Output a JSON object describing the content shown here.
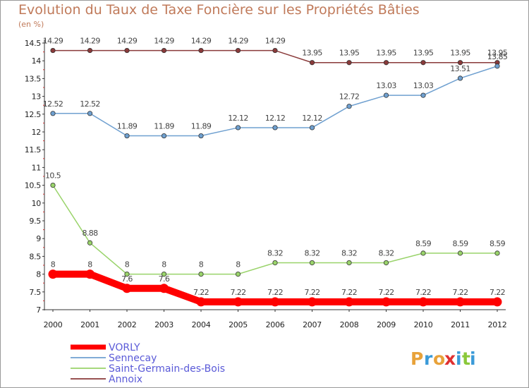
{
  "chart_data": {
    "type": "line",
    "title": "Evolution du Taux de Taxe Foncière sur les Propriétés Bâties",
    "ylabel": "(en %)",
    "xlabel": "",
    "categories": [
      "2000",
      "2001",
      "2002",
      "2003",
      "2004",
      "2005",
      "2006",
      "2007",
      "2008",
      "2009",
      "2010",
      "2011",
      "2012"
    ],
    "ylim": [
      7,
      14.5
    ],
    "yticks": [
      "7",
      "7.5",
      "8",
      "8.5",
      "9",
      "9.5",
      "10",
      "10.5",
      "11",
      "11.5",
      "12",
      "12.5",
      "13",
      "13.5",
      "14",
      "14.5"
    ],
    "grid": false,
    "legend_position": "bottom-left",
    "series": [
      {
        "name": "VORLY",
        "color": "#ff0000",
        "values": [
          8,
          8,
          7.6,
          7.6,
          7.22,
          7.22,
          7.22,
          7.22,
          7.22,
          7.22,
          7.22,
          7.22,
          7.22
        ],
        "labels": [
          "8",
          "8",
          "7.6",
          "7.6",
          "7.22",
          "7.22",
          "7.22",
          "7.22",
          "7.22",
          "7.22",
          "7.22",
          "7.22",
          "7.22"
        ]
      },
      {
        "name": "Sennecay",
        "color": "#6fa0d0",
        "values": [
          12.52,
          12.52,
          11.89,
          11.89,
          11.89,
          12.12,
          12.12,
          12.12,
          12.72,
          13.03,
          13.03,
          13.51,
          13.85
        ],
        "labels": [
          "12.52",
          "12.52",
          "11.89",
          "11.89",
          "11.89",
          "12.12",
          "12.12",
          "12.12",
          "12.72",
          "13.03",
          "13.03",
          "13.51",
          "13.85"
        ]
      },
      {
        "name": "Saint-Germain-des-Bois",
        "color": "#99d36a",
        "values": [
          10.5,
          8.88,
          8,
          8,
          8,
          8,
          8.32,
          8.32,
          8.32,
          8.32,
          8.59,
          8.59,
          8.59
        ],
        "labels": [
          "10.5",
          "8.88",
          "8",
          "8",
          "8",
          "8",
          "8.32",
          "8.32",
          "8.32",
          "8.32",
          "8.59",
          "8.59",
          "8.59"
        ]
      },
      {
        "name": "Annoix",
        "color": "#8a3a3a",
        "values": [
          14.29,
          14.29,
          14.29,
          14.29,
          14.29,
          14.29,
          14.29,
          13.95,
          13.95,
          13.95,
          13.95,
          13.95,
          13.95
        ],
        "labels": [
          "14.29",
          "14.29",
          "14.29",
          "14.29",
          "14.29",
          "14.29",
          "14.29",
          "13.95",
          "13.95",
          "13.95",
          "13.95",
          "13.95",
          "13.95"
        ]
      }
    ]
  },
  "branding": {
    "logo_letters": [
      "P",
      "r",
      "o",
      "x",
      "i",
      "t",
      "i"
    ],
    "logo_colors": [
      "#e8a23a",
      "#3a9ad8",
      "#e8a23a",
      "#e03030",
      "#3a9ad8",
      "#8ac83a",
      "#3a9ad8"
    ]
  }
}
